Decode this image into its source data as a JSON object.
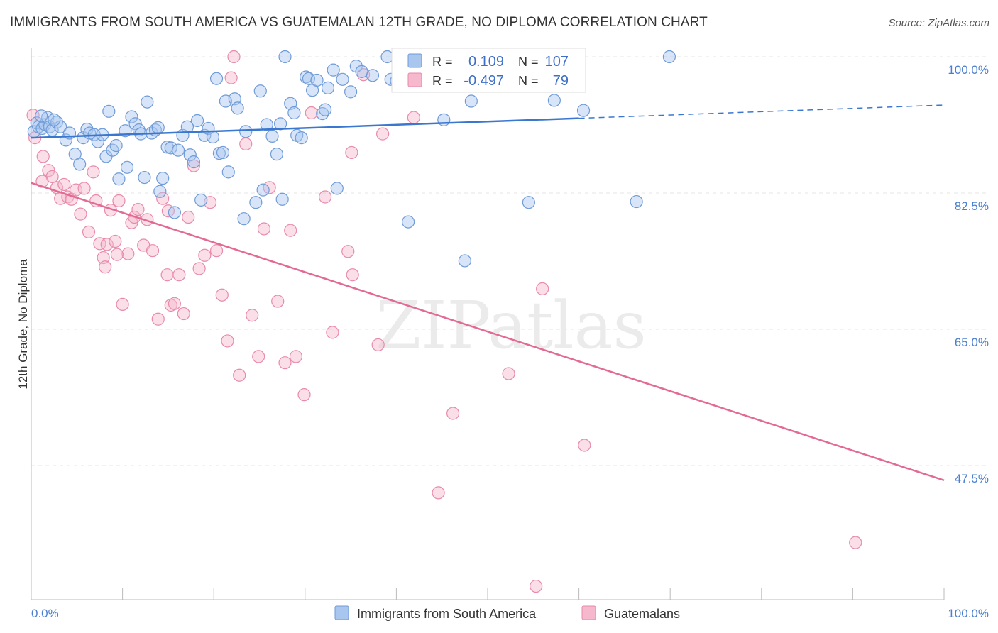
{
  "title": "IMMIGRANTS FROM SOUTH AMERICA VS GUATEMALAN 12TH GRADE, NO DIPLOMA CORRELATION CHART",
  "source": "Source: ZipAtlas.com",
  "watermark": "ZIPatlas",
  "colors": {
    "blue_fill": "#a9c6ef",
    "blue_stroke": "#6f9bd8",
    "blue_line": "#3a77d0",
    "pink_fill": "#f5b8cc",
    "pink_stroke": "#e98aaa",
    "pink_line": "#e26a95",
    "tick_label": "#4a7fd0",
    "grid": "#e6e6e6"
  },
  "legend": {
    "rows": [
      {
        "r_label": "R =",
        "r_value": "0.109",
        "n_label": "N =",
        "n_value": "107"
      },
      {
        "r_label": "R =",
        "r_value": "-0.497",
        "n_label": "N =",
        "n_value": "79"
      }
    ]
  },
  "bottom_legend": [
    "Immigrants from South America",
    "Guatemalans"
  ],
  "chart_data": {
    "type": "scatter",
    "title": "IMMIGRANTS FROM SOUTH AMERICA VS GUATEMALAN 12TH GRADE, NO DIPLOMA CORRELATION CHART",
    "xlabel": "",
    "ylabel": "12th Grade, No Diploma",
    "xlim": [
      0,
      100
    ],
    "ylim": [
      30,
      102
    ],
    "x_tick_labels": [
      "0.0%",
      "100.0%"
    ],
    "y_ticks": [
      100.0,
      82.5,
      65.0,
      47.5
    ],
    "y_tick_labels": [
      "100.0%",
      "82.5%",
      "65.0%",
      "47.5%"
    ],
    "grid": true,
    "legend_position": "top-center",
    "series": [
      {
        "name": "Immigrants from South America",
        "R": 0.109,
        "N": 107,
        "trend": {
          "x": [
            0,
            60,
            100
          ],
          "y": [
            89.6,
            92.1,
            93.8
          ],
          "solid_until_x": 60
        },
        "points": [
          [
            0.3,
            90.4
          ],
          [
            0.6,
            91.5
          ],
          [
            0.8,
            91.0
          ],
          [
            1.2,
            90.8
          ],
          [
            1.5,
            91.3
          ],
          [
            1.8,
            92.2
          ],
          [
            2.0,
            91.0
          ],
          [
            2.3,
            90.6
          ],
          [
            2.8,
            91.6
          ],
          [
            3.2,
            91.0
          ],
          [
            3.8,
            89.3
          ],
          [
            4.2,
            90.2
          ],
          [
            4.8,
            87.5
          ],
          [
            5.3,
            86.2
          ],
          [
            5.7,
            89.6
          ],
          [
            6.1,
            90.7
          ],
          [
            6.4,
            90.2
          ],
          [
            6.9,
            90.0
          ],
          [
            7.3,
            89.1
          ],
          [
            7.8,
            90.0
          ],
          [
            8.2,
            87.2
          ],
          [
            8.5,
            93.0
          ],
          [
            8.9,
            88.0
          ],
          [
            9.3,
            88.6
          ],
          [
            9.6,
            84.3
          ],
          [
            10.3,
            90.5
          ],
          [
            10.5,
            85.8
          ],
          [
            11.0,
            92.3
          ],
          [
            11.4,
            91.4
          ],
          [
            11.8,
            90.6
          ],
          [
            12.0,
            90.1
          ],
          [
            12.4,
            84.5
          ],
          [
            12.7,
            94.2
          ],
          [
            13.2,
            90.2
          ],
          [
            13.6,
            90.6
          ],
          [
            13.9,
            90.9
          ],
          [
            14.1,
            82.7
          ],
          [
            14.4,
            84.4
          ],
          [
            14.9,
            88.4
          ],
          [
            15.3,
            88.3
          ],
          [
            15.7,
            80.0
          ],
          [
            16.1,
            88.0
          ],
          [
            16.6,
            89.9
          ],
          [
            17.1,
            91.0
          ],
          [
            17.4,
            87.4
          ],
          [
            17.8,
            86.5
          ],
          [
            18.2,
            91.8
          ],
          [
            18.6,
            81.6
          ],
          [
            19.0,
            89.9
          ],
          [
            19.4,
            90.8
          ],
          [
            19.9,
            89.7
          ],
          [
            20.3,
            97.2
          ],
          [
            20.6,
            87.6
          ],
          [
            21.0,
            87.7
          ],
          [
            21.3,
            94.3
          ],
          [
            21.6,
            85.2
          ],
          [
            22.3,
            94.6
          ],
          [
            22.6,
            93.4
          ],
          [
            23.3,
            79.2
          ],
          [
            23.5,
            90.4
          ],
          [
            24.6,
            81.3
          ],
          [
            25.1,
            95.6
          ],
          [
            25.4,
            82.9
          ],
          [
            25.8,
            91.3
          ],
          [
            26.4,
            89.8
          ],
          [
            26.9,
            87.5
          ],
          [
            27.3,
            91.4
          ],
          [
            27.5,
            81.7
          ],
          [
            27.8,
            100.0
          ],
          [
            28.4,
            94.0
          ],
          [
            28.8,
            92.8
          ],
          [
            29.1,
            89.9
          ],
          [
            29.6,
            89.6
          ],
          [
            30.1,
            97.4
          ],
          [
            30.4,
            97.2
          ],
          [
            30.8,
            95.7
          ],
          [
            31.3,
            97.0
          ],
          [
            31.9,
            92.7
          ],
          [
            32.2,
            93.2
          ],
          [
            32.5,
            96.0
          ],
          [
            33.1,
            98.3
          ],
          [
            33.5,
            83.1
          ],
          [
            34.1,
            97.1
          ],
          [
            35.0,
            95.5
          ],
          [
            35.6,
            98.8
          ],
          [
            36.2,
            98.1
          ],
          [
            37.4,
            97.6
          ],
          [
            39.0,
            100.0
          ],
          [
            39.4,
            97.1
          ],
          [
            40.0,
            96.9
          ],
          [
            40.5,
            96.7
          ],
          [
            41.1,
            100.0
          ],
          [
            41.3,
            78.8
          ],
          [
            45.2,
            91.9
          ],
          [
            47.5,
            73.8
          ],
          [
            48.2,
            94.3
          ],
          [
            52.6,
            100.0
          ],
          [
            54.2,
            97.5
          ],
          [
            54.5,
            81.3
          ],
          [
            56.4,
            97.1
          ],
          [
            57.3,
            94.4
          ],
          [
            59.1,
            100.0
          ],
          [
            60.5,
            93.1
          ],
          [
            66.3,
            81.4
          ],
          [
            69.9,
            100.0
          ],
          [
            1.1,
            92.4
          ],
          [
            2.5,
            91.9
          ]
        ]
      },
      {
        "name": "Guatemalans",
        "R": -0.497,
        "N": 79,
        "trend": {
          "x": [
            0,
            100
          ],
          "y": [
            83.8,
            45.6
          ]
        },
        "points": [
          [
            0.2,
            92.5
          ],
          [
            0.4,
            89.6
          ],
          [
            1.3,
            87.2
          ],
          [
            1.9,
            85.4
          ],
          [
            2.3,
            84.6
          ],
          [
            2.8,
            83.2
          ],
          [
            3.2,
            81.8
          ],
          [
            3.6,
            83.6
          ],
          [
            4.0,
            82.0
          ],
          [
            4.4,
            81.7
          ],
          [
            4.9,
            82.9
          ],
          [
            5.4,
            79.8
          ],
          [
            5.8,
            83.1
          ],
          [
            6.3,
            77.5
          ],
          [
            6.8,
            85.2
          ],
          [
            7.1,
            81.5
          ],
          [
            7.5,
            76.0
          ],
          [
            7.9,
            74.2
          ],
          [
            8.3,
            75.9
          ],
          [
            8.7,
            80.3
          ],
          [
            9.2,
            76.3
          ],
          [
            9.6,
            81.5
          ],
          [
            10.0,
            68.2
          ],
          [
            10.6,
            74.7
          ],
          [
            11.0,
            78.7
          ],
          [
            11.3,
            79.4
          ],
          [
            11.7,
            80.4
          ],
          [
            12.3,
            75.8
          ],
          [
            12.7,
            79.1
          ],
          [
            13.3,
            75.1
          ],
          [
            13.9,
            66.3
          ],
          [
            14.4,
            81.8
          ],
          [
            14.9,
            72.0
          ],
          [
            15.3,
            68.1
          ],
          [
            15.7,
            68.3
          ],
          [
            16.2,
            72.0
          ],
          [
            16.7,
            67.0
          ],
          [
            17.2,
            79.4
          ],
          [
            17.8,
            86.0
          ],
          [
            18.4,
            72.8
          ],
          [
            19.0,
            74.5
          ],
          [
            19.6,
            81.3
          ],
          [
            20.3,
            75.1
          ],
          [
            20.9,
            69.4
          ],
          [
            21.5,
            63.5
          ],
          [
            22.2,
            100.0
          ],
          [
            22.8,
            59.1
          ],
          [
            23.5,
            88.8
          ],
          [
            24.2,
            66.8
          ],
          [
            24.9,
            61.5
          ],
          [
            25.5,
            77.9
          ],
          [
            26.1,
            83.2
          ],
          [
            27.0,
            68.6
          ],
          [
            27.8,
            60.7
          ],
          [
            28.4,
            77.7
          ],
          [
            29.0,
            61.5
          ],
          [
            29.9,
            56.6
          ],
          [
            30.7,
            92.8
          ],
          [
            32.2,
            82.0
          ],
          [
            33.0,
            64.6
          ],
          [
            34.7,
            75.0
          ],
          [
            35.2,
            72.0
          ],
          [
            36.4,
            97.7
          ],
          [
            38.0,
            63.0
          ],
          [
            38.5,
            90.1
          ],
          [
            41.9,
            92.2
          ],
          [
            44.6,
            44.0
          ],
          [
            46.2,
            54.2
          ],
          [
            52.3,
            59.3
          ],
          [
            56.0,
            70.2
          ],
          [
            60.6,
            50.1
          ],
          [
            90.3,
            37.6
          ],
          [
            1.2,
            84.0
          ],
          [
            9.4,
            74.6
          ],
          [
            21.9,
            97.3
          ],
          [
            35.1,
            87.7
          ],
          [
            55.3,
            32.0
          ],
          [
            15.0,
            80.2
          ],
          [
            8.1,
            73.0
          ]
        ]
      }
    ]
  }
}
